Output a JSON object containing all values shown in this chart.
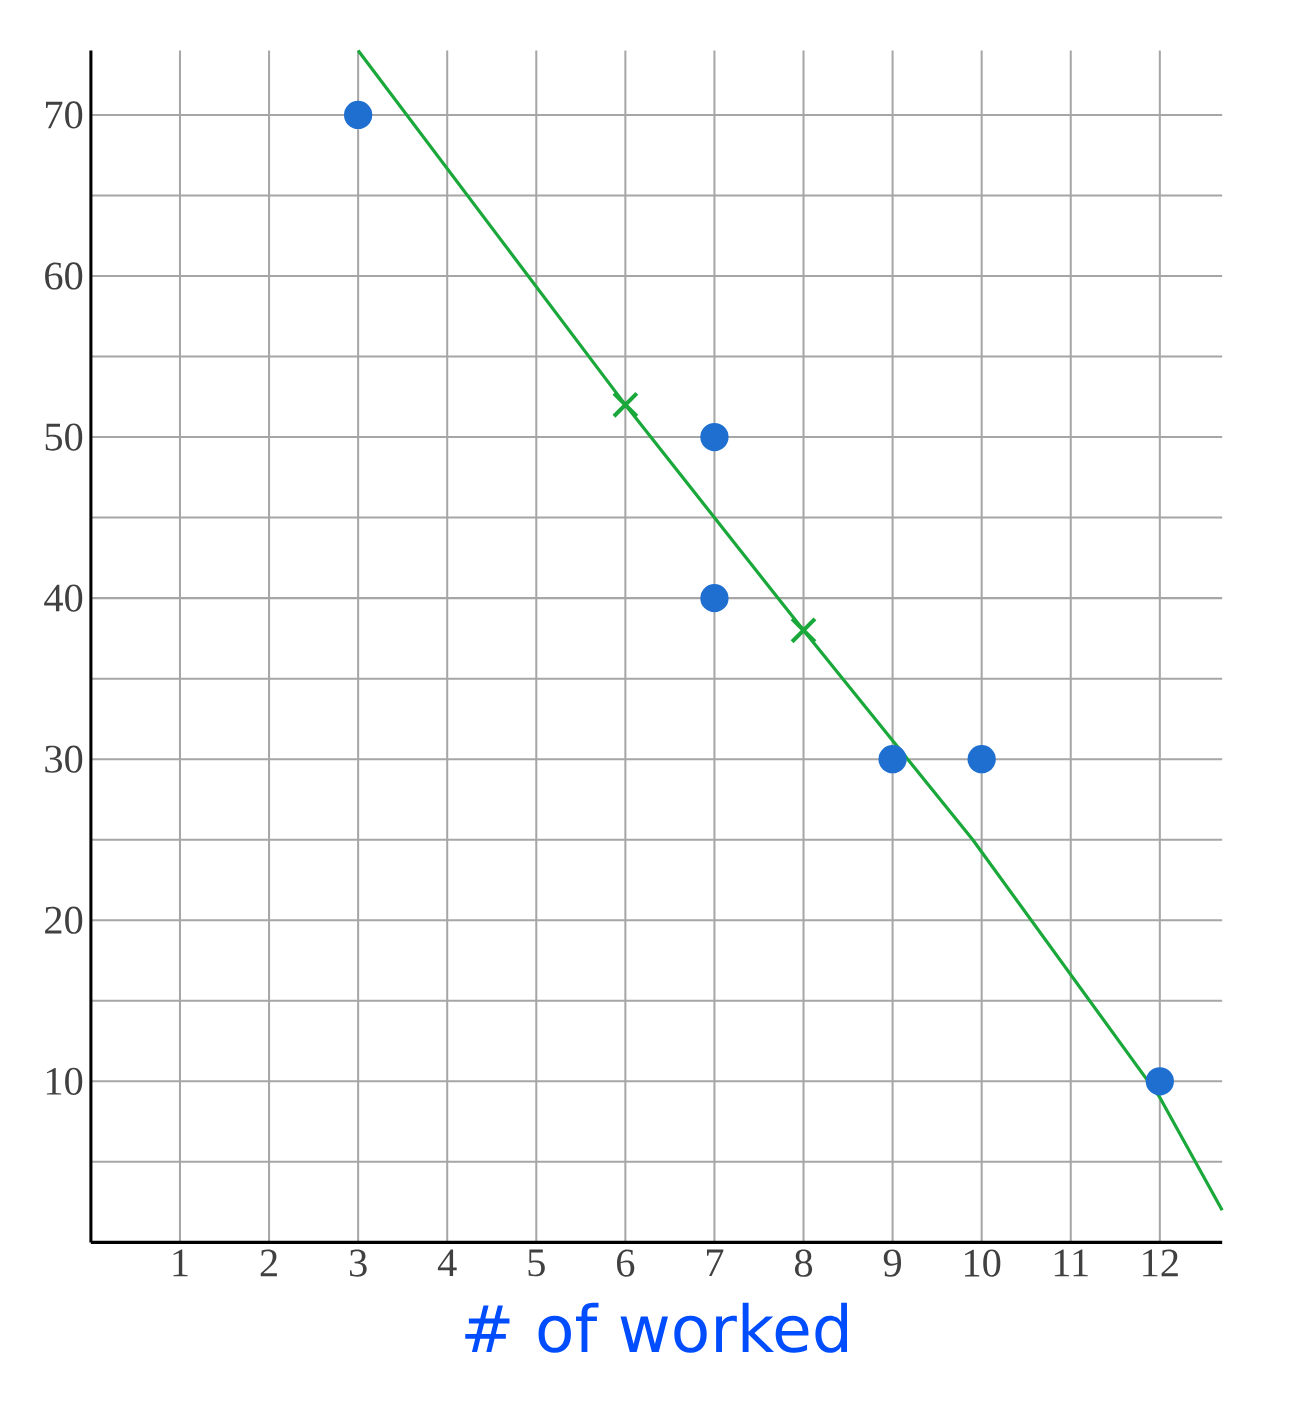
{
  "chart_data": {
    "type": "scatter",
    "xlabel": "# of worked",
    "xlim": [
      0,
      12.7
    ],
    "ylim": [
      0,
      74
    ],
    "xticks": [
      1,
      2,
      3,
      4,
      5,
      6,
      7,
      8,
      9,
      10,
      11,
      12
    ],
    "yticks": [
      {
        "value": 5,
        "label": null
      },
      10,
      {
        "value": 15,
        "label": null
      },
      20,
      {
        "value": 25,
        "label": null
      },
      30,
      {
        "value": 35,
        "label": null
      },
      40,
      {
        "value": 45,
        "label": null
      },
      50,
      {
        "value": 55,
        "label": null
      },
      60,
      {
        "value": 65,
        "label": null
      },
      70
    ],
    "grid": true,
    "series": [
      {
        "marker": "circle",
        "color": "#1f6fd1",
        "x": [
          3,
          7,
          7,
          9,
          10,
          12
        ],
        "values": [
          70,
          50,
          40,
          30,
          30,
          10
        ]
      },
      {
        "type": "line",
        "marker": "none",
        "color": "#1aa83a",
        "x": [
          3.0,
          6.0,
          8.0,
          9.9,
          12.0,
          12.7
        ],
        "values": [
          74,
          52,
          38,
          25,
          9,
          2
        ]
      },
      {
        "marker": "cross",
        "color": "#1aa83a",
        "x": [
          6,
          8
        ],
        "values": [
          52,
          38
        ]
      }
    ]
  }
}
